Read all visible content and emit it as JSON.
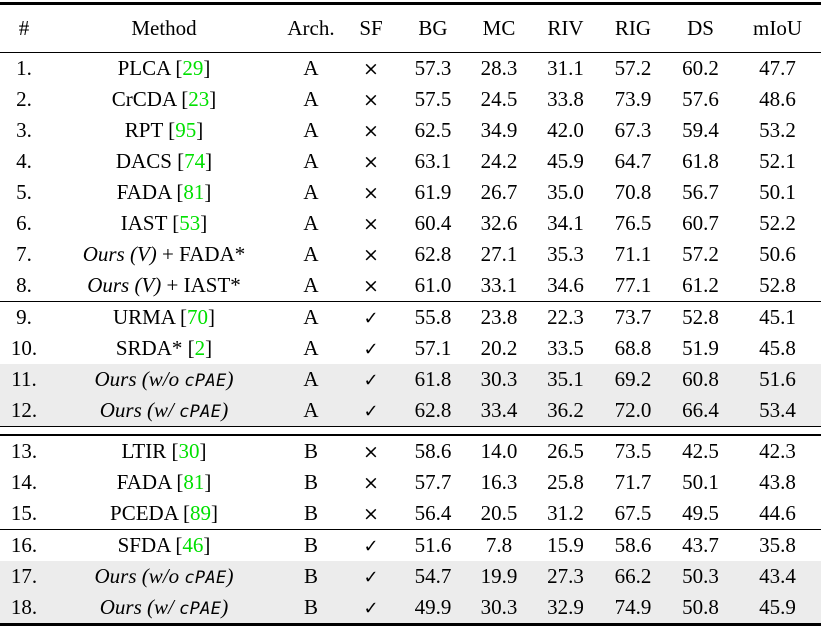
{
  "table": {
    "columns": [
      "#",
      "Method",
      "Arch.",
      "SF",
      "BG",
      "MC",
      "RIV",
      "RIG",
      "DS",
      "mIoU"
    ],
    "symbols": {
      "check": "✓",
      "cross": "×"
    },
    "colors": {
      "citation_green": "#00e000",
      "row_highlight": "#ececec"
    },
    "groups": [
      {
        "divider_after": "thin",
        "rows": [
          {
            "num": "1.",
            "method": [
              {
                "s": "r",
                "t": "PLCA ["
              },
              {
                "s": "c",
                "t": "29"
              },
              {
                "s": "r",
                "t": "]"
              }
            ],
            "arch": "A",
            "sf": "cross",
            "scores": [
              "57.3",
              "28.3",
              "31.1",
              "57.2",
              "60.2"
            ],
            "miou": "47.7",
            "miou_bold": false,
            "highlight": false
          },
          {
            "num": "2.",
            "method": [
              {
                "s": "r",
                "t": "CrCDA ["
              },
              {
                "s": "c",
                "t": "23"
              },
              {
                "s": "r",
                "t": "]"
              }
            ],
            "arch": "A",
            "sf": "cross",
            "scores": [
              "57.5",
              "24.5",
              "33.8",
              "73.9",
              "57.6"
            ],
            "miou": "48.6",
            "miou_bold": false,
            "highlight": false
          },
          {
            "num": "3.",
            "method": [
              {
                "s": "r",
                "t": "RPT ["
              },
              {
                "s": "c",
                "t": "95"
              },
              {
                "s": "r",
                "t": "]"
              }
            ],
            "arch": "A",
            "sf": "cross",
            "scores": [
              "62.5",
              "34.9",
              "42.0",
              "67.3",
              "59.4"
            ],
            "miou": "53.2",
            "miou_bold": false,
            "highlight": false
          },
          {
            "num": "4.",
            "method": [
              {
                "s": "r",
                "t": "DACS ["
              },
              {
                "s": "c",
                "t": "74"
              },
              {
                "s": "r",
                "t": "]"
              }
            ],
            "arch": "A",
            "sf": "cross",
            "scores": [
              "63.1",
              "24.2",
              "45.9",
              "64.7",
              "61.8"
            ],
            "miou": "52.1",
            "miou_bold": false,
            "highlight": false
          },
          {
            "num": "5.",
            "method": [
              {
                "s": "r",
                "t": "FADA ["
              },
              {
                "s": "c",
                "t": "81"
              },
              {
                "s": "r",
                "t": "]"
              }
            ],
            "arch": "A",
            "sf": "cross",
            "scores": [
              "61.9",
              "26.7",
              "35.0",
              "70.8",
              "56.7"
            ],
            "miou": "50.1",
            "miou_bold": false,
            "highlight": false
          },
          {
            "num": "6.",
            "method": [
              {
                "s": "r",
                "t": "IAST ["
              },
              {
                "s": "c",
                "t": "53"
              },
              {
                "s": "r",
                "t": "]"
              }
            ],
            "arch": "A",
            "sf": "cross",
            "scores": [
              "60.4",
              "32.6",
              "34.1",
              "76.5",
              "60.7"
            ],
            "miou": "52.2",
            "miou_bold": false,
            "highlight": false
          },
          {
            "num": "7.",
            "method": [
              {
                "s": "i",
                "t": "Ours (V)"
              },
              {
                "s": "r",
                "t": " + FADA*"
              }
            ],
            "arch": "A",
            "sf": "cross",
            "scores": [
              "62.8",
              "27.1",
              "35.3",
              "71.1",
              "57.2"
            ],
            "miou": "50.6",
            "miou_bold": false,
            "highlight": false
          },
          {
            "num": "8.",
            "method": [
              {
                "s": "i",
                "t": "Ours (V)"
              },
              {
                "s": "r",
                "t": " + IAST*"
              }
            ],
            "arch": "A",
            "sf": "cross",
            "scores": [
              "61.0",
              "33.1",
              "34.6",
              "77.1",
              "61.2"
            ],
            "miou": "52.8",
            "miou_bold": false,
            "highlight": false
          }
        ]
      },
      {
        "divider_after": "double",
        "rows": [
          {
            "num": "9.",
            "method": [
              {
                "s": "r",
                "t": "URMA ["
              },
              {
                "s": "c",
                "t": "70"
              },
              {
                "s": "r",
                "t": "]"
              }
            ],
            "arch": "A",
            "sf": "check",
            "scores": [
              "55.8",
              "23.8",
              "22.3",
              "73.7",
              "52.8"
            ],
            "miou": "45.1",
            "miou_bold": false,
            "highlight": false
          },
          {
            "num": "10.",
            "method": [
              {
                "s": "r",
                "t": "SRDA* ["
              },
              {
                "s": "c",
                "t": "2"
              },
              {
                "s": "r",
                "t": "]"
              }
            ],
            "arch": "A",
            "sf": "check",
            "scores": [
              "57.1",
              "20.2",
              "33.5",
              "68.8",
              "51.9"
            ],
            "miou": "45.8",
            "miou_bold": false,
            "highlight": false
          },
          {
            "num": "11.",
            "method": [
              {
                "s": "i",
                "t": "Ours (w/o "
              },
              {
                "s": "tt",
                "t": "cPAE"
              },
              {
                "s": "i",
                "t": ")"
              }
            ],
            "arch": "A",
            "sf": "check",
            "scores": [
              "61.8",
              "30.3",
              "35.1",
              "69.2",
              "60.8"
            ],
            "miou": "51.6",
            "miou_bold": false,
            "highlight": true
          },
          {
            "num": "12.",
            "method": [
              {
                "s": "i",
                "t": "Ours (w/ "
              },
              {
                "s": "tt",
                "t": "cPAE"
              },
              {
                "s": "i",
                "t": ")"
              }
            ],
            "arch": "A",
            "sf": "check",
            "scores": [
              "62.8",
              "33.4",
              "36.2",
              "72.0",
              "66.4"
            ],
            "miou": "53.4",
            "miou_bold": true,
            "highlight": true
          }
        ]
      },
      {
        "divider_after": "thin",
        "rows": [
          {
            "num": "13.",
            "method": [
              {
                "s": "r",
                "t": "LTIR ["
              },
              {
                "s": "c",
                "t": "30"
              },
              {
                "s": "r",
                "t": "]"
              }
            ],
            "arch": "B",
            "sf": "cross",
            "scores": [
              "58.6",
              "14.0",
              "26.5",
              "73.5",
              "42.5"
            ],
            "miou": "42.3",
            "miou_bold": false,
            "highlight": false
          },
          {
            "num": "14.",
            "method": [
              {
                "s": "r",
                "t": "FADA ["
              },
              {
                "s": "c",
                "t": "81"
              },
              {
                "s": "r",
                "t": "]"
              }
            ],
            "arch": "B",
            "sf": "cross",
            "scores": [
              "57.7",
              "16.3",
              "25.8",
              "71.7",
              "50.1"
            ],
            "miou": "43.8",
            "miou_bold": false,
            "highlight": false
          },
          {
            "num": "15.",
            "method": [
              {
                "s": "r",
                "t": "PCEDA ["
              },
              {
                "s": "c",
                "t": "89"
              },
              {
                "s": "r",
                "t": "]"
              }
            ],
            "arch": "B",
            "sf": "cross",
            "scores": [
              "56.4",
              "20.5",
              "31.2",
              "67.5",
              "49.5"
            ],
            "miou": "44.6",
            "miou_bold": false,
            "highlight": false
          }
        ]
      },
      {
        "divider_after": "none",
        "rows": [
          {
            "num": "16.",
            "method": [
              {
                "s": "r",
                "t": "SFDA ["
              },
              {
                "s": "c",
                "t": "46"
              },
              {
                "s": "r",
                "t": "]"
              }
            ],
            "arch": "B",
            "sf": "check",
            "scores": [
              "51.6",
              "7.8",
              "15.9",
              "58.6",
              "43.7"
            ],
            "miou": "35.8",
            "miou_bold": false,
            "highlight": false
          },
          {
            "num": "17.",
            "method": [
              {
                "s": "i",
                "t": "Ours (w/o "
              },
              {
                "s": "tt",
                "t": "cPAE"
              },
              {
                "s": "i",
                "t": ")"
              }
            ],
            "arch": "B",
            "sf": "check",
            "scores": [
              "54.7",
              "19.9",
              "27.3",
              "66.2",
              "50.3"
            ],
            "miou": "43.4",
            "miou_bold": false,
            "highlight": true
          },
          {
            "num": "18.",
            "method": [
              {
                "s": "i",
                "t": "Ours (w/ "
              },
              {
                "s": "tt",
                "t": "cPAE"
              },
              {
                "s": "i",
                "t": ")"
              }
            ],
            "arch": "B",
            "sf": "check",
            "scores": [
              "49.9",
              "30.3",
              "32.9",
              "74.9",
              "50.8"
            ],
            "miou": "45.9",
            "miou_bold": true,
            "highlight": true
          }
        ]
      }
    ]
  }
}
